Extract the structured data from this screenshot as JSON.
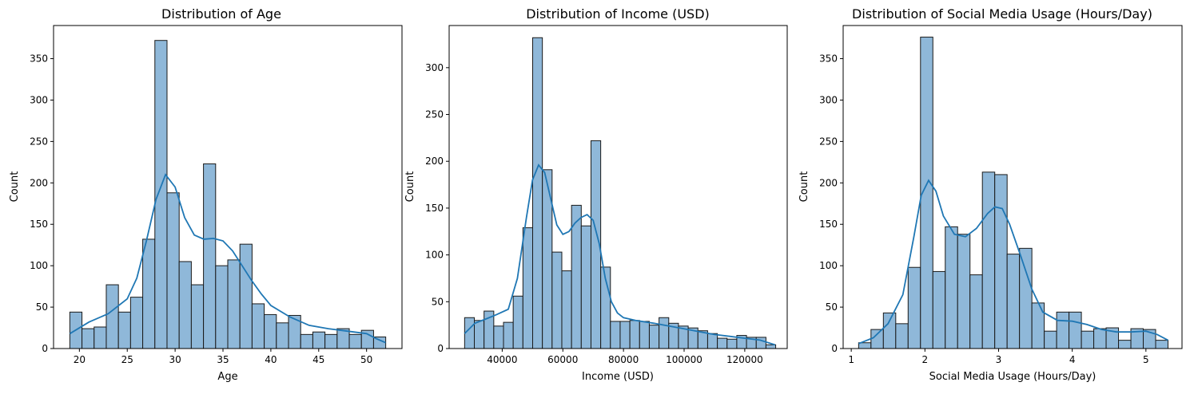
{
  "figure": {
    "bar_fill": "#8fb8d9",
    "bar_edge": "#1a1a1a",
    "line_color": "#1f77b4"
  },
  "chart_data": [
    {
      "type": "bar",
      "kind": "histogram-with-kde",
      "title": "Distribution of Age",
      "xlabel": "Age",
      "ylabel": "Count",
      "xlim": [
        17.3,
        53.7
      ],
      "ylim": [
        0,
        390
      ],
      "xticks": [
        20,
        25,
        30,
        35,
        40,
        45,
        50
      ],
      "xtick_labels": [
        "20",
        "25",
        "30",
        "35",
        "40",
        "45",
        "50"
      ],
      "yticks": [
        0,
        50,
        100,
        150,
        200,
        250,
        300,
        350
      ],
      "ytick_labels": [
        "0",
        "50",
        "100",
        "150",
        "200",
        "250",
        "300",
        "350"
      ],
      "bin_start": 19,
      "bin_end": 52,
      "values": [
        44,
        24,
        26,
        77,
        44,
        62,
        132,
        372,
        188,
        105,
        77,
        223,
        100,
        107,
        126,
        54,
        41,
        31,
        40,
        17,
        20,
        17,
        24,
        17,
        22,
        14
      ],
      "kde": [
        [
          19,
          18
        ],
        [
          21,
          32
        ],
        [
          23,
          42
        ],
        [
          25,
          60
        ],
        [
          26,
          85
        ],
        [
          27,
          130
        ],
        [
          28,
          180
        ],
        [
          29,
          210
        ],
        [
          30,
          195
        ],
        [
          31,
          158
        ],
        [
          32,
          137
        ],
        [
          33,
          132
        ],
        [
          34,
          133
        ],
        [
          35,
          130
        ],
        [
          36,
          118
        ],
        [
          37,
          100
        ],
        [
          38,
          82
        ],
        [
          39,
          66
        ],
        [
          40,
          52
        ],
        [
          42,
          38
        ],
        [
          44,
          28
        ],
        [
          46,
          24
        ],
        [
          48,
          21
        ],
        [
          50,
          18
        ],
        [
          51,
          12
        ],
        [
          52,
          7
        ]
      ]
    },
    {
      "type": "bar",
      "kind": "histogram-with-kde",
      "title": "Distribution of Income (USD)",
      "xlabel": "Income (USD)",
      "ylabel": "Count",
      "xlim": [
        22500,
        134000
      ],
      "ylim": [
        0,
        345
      ],
      "xticks": [
        40000,
        60000,
        80000,
        100000,
        120000
      ],
      "xtick_labels": [
        "40000",
        "60000",
        "80000",
        "100000",
        "120000"
      ],
      "yticks": [
        0,
        50,
        100,
        150,
        200,
        250,
        300
      ],
      "ytick_labels": [
        "0",
        "50",
        "100",
        "150",
        "200",
        "250",
        "300"
      ],
      "bin_start": 27600,
      "bin_end": 130200,
      "values": [
        33,
        30,
        40,
        24,
        28,
        56,
        129,
        332,
        191,
        103,
        83,
        153,
        131,
        222,
        87,
        29,
        29,
        30,
        29,
        25,
        33,
        27,
        24,
        22,
        19,
        16,
        11,
        10,
        14,
        12,
        12,
        4
      ],
      "kde": [
        [
          27600,
          16
        ],
        [
          31000,
          27
        ],
        [
          35000,
          32
        ],
        [
          38000,
          36
        ],
        [
          42000,
          42
        ],
        [
          45000,
          75
        ],
        [
          48000,
          140
        ],
        [
          50000,
          180
        ],
        [
          52000,
          196
        ],
        [
          54000,
          188
        ],
        [
          56000,
          160
        ],
        [
          58000,
          132
        ],
        [
          60000,
          122
        ],
        [
          62000,
          125
        ],
        [
          64000,
          134
        ],
        [
          66000,
          140
        ],
        [
          68000,
          143
        ],
        [
          70000,
          137
        ],
        [
          72000,
          112
        ],
        [
          74000,
          75
        ],
        [
          76000,
          50
        ],
        [
          78000,
          38
        ],
        [
          80000,
          33
        ],
        [
          84000,
          30
        ],
        [
          90000,
          27
        ],
        [
          95000,
          24
        ],
        [
          100000,
          21
        ],
        [
          105000,
          18
        ],
        [
          110000,
          15
        ],
        [
          115000,
          13
        ],
        [
          120000,
          11
        ],
        [
          125000,
          9
        ],
        [
          130000,
          4
        ]
      ]
    },
    {
      "type": "bar",
      "kind": "histogram-with-kde",
      "title": "Distribution of Social Media Usage (Hours/Day)",
      "xlabel": "Social Media Usage (Hours/Day)",
      "ylabel": "Count",
      "xlim": [
        0.89,
        5.49
      ],
      "ylim": [
        0,
        390
      ],
      "xticks": [
        1,
        2,
        3,
        4,
        5
      ],
      "xtick_labels": [
        "1",
        "2",
        "3",
        "4",
        "5"
      ],
      "yticks": [
        0,
        50,
        100,
        150,
        200,
        250,
        300,
        350
      ],
      "ytick_labels": [
        "0",
        "50",
        "100",
        "150",
        "200",
        "250",
        "300",
        "350"
      ],
      "bin_start": 1.1,
      "bin_end": 5.3,
      "values": [
        7,
        23,
        43,
        30,
        98,
        376,
        93,
        147,
        138,
        89,
        213,
        210,
        114,
        121,
        55,
        21,
        44,
        44,
        21,
        24,
        25,
        10,
        24,
        23,
        10
      ],
      "kde": [
        [
          1.1,
          6
        ],
        [
          1.3,
          13
        ],
        [
          1.5,
          30
        ],
        [
          1.7,
          65
        ],
        [
          1.85,
          135
        ],
        [
          1.95,
          185
        ],
        [
          2.05,
          203
        ],
        [
          2.15,
          190
        ],
        [
          2.25,
          160
        ],
        [
          2.4,
          138
        ],
        [
          2.55,
          135
        ],
        [
          2.7,
          145
        ],
        [
          2.85,
          163
        ],
        [
          2.95,
          171
        ],
        [
          3.05,
          169
        ],
        [
          3.15,
          150
        ],
        [
          3.3,
          112
        ],
        [
          3.45,
          72
        ],
        [
          3.6,
          44
        ],
        [
          3.8,
          34
        ],
        [
          4.0,
          33
        ],
        [
          4.2,
          29
        ],
        [
          4.4,
          23
        ],
        [
          4.6,
          20
        ],
        [
          4.8,
          20
        ],
        [
          5.0,
          21
        ],
        [
          5.15,
          17
        ],
        [
          5.3,
          10
        ]
      ]
    }
  ]
}
